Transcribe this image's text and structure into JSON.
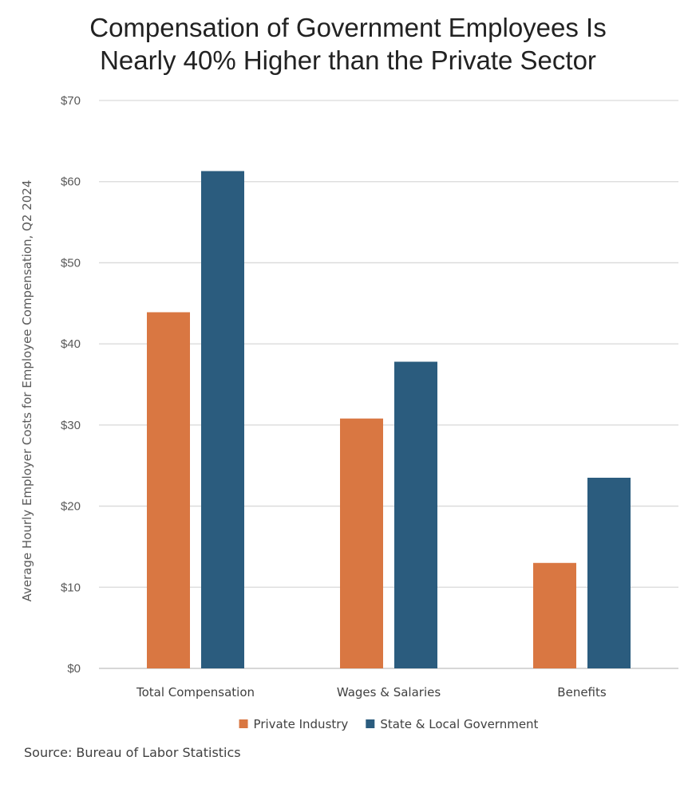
{
  "chart_data": {
    "type": "bar",
    "title_lines": [
      "Compensation of Government Employees Is",
      "Nearly 40% Higher than the Private Sector"
    ],
    "ylabel": "Average Hourly Employer Costs for Employee Compensation, Q2 2024",
    "xlabel": "",
    "categories": [
      "Total Compensation",
      "Wages & Salaries",
      "Benefits"
    ],
    "series": [
      {
        "name": "Private Industry",
        "color": "#d97742",
        "values": [
          43.9,
          30.8,
          13.0
        ]
      },
      {
        "name": "State & Local Government",
        "color": "#2b5c7e",
        "values": [
          61.3,
          37.8,
          23.5
        ]
      }
    ],
    "ylim": [
      0,
      70
    ],
    "yticks": [
      0,
      10,
      20,
      30,
      40,
      50,
      60,
      70
    ],
    "ytick_labels": [
      "$0",
      "$10",
      "$20",
      "$30",
      "$40",
      "$50",
      "$60",
      "$70"
    ],
    "grid": true,
    "legend_position": "bottom"
  },
  "source": "Source: Bureau of Labor Statistics"
}
